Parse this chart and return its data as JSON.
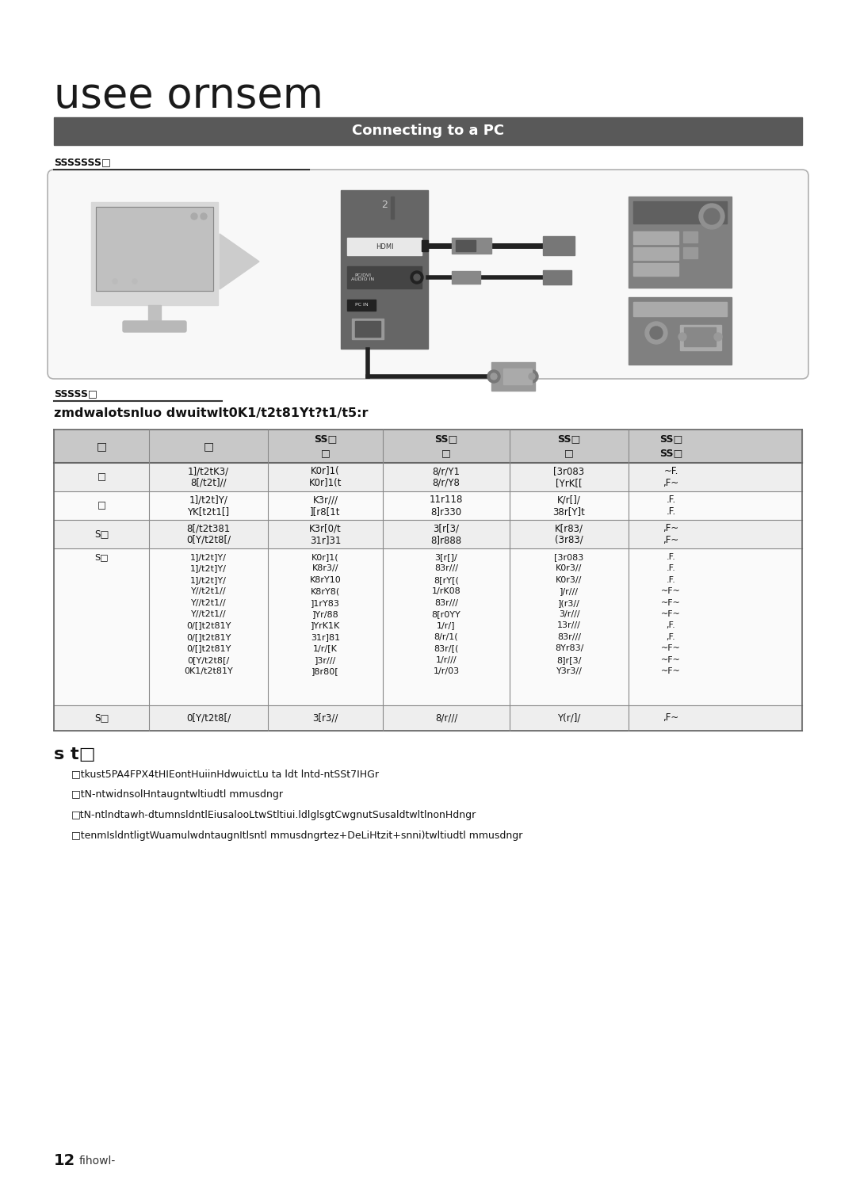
{
  "title": "usee ornsem",
  "section_header": "Connecting to a PC",
  "section_header_bg": "#595959",
  "section_header_color": "#ffffff",
  "subsection1_label": "SSSSSSS□",
  "subsection2_label": "SSSSS□",
  "table_intro": "zmdwalotsnluo dwuitwlt0K1/t2t81Yt?t1/t5:r",
  "table_header_bg": "#c8c8c8",
  "notes_title": "s t□",
  "notes": [
    "□tkust5PA4FPX4tHIEontHuiinHdwuictLu ta ldt lntd-ntSSt7IHGr",
    "□tN-ntwidnsolHntaugntwltiudtl mmusdngr",
    "□tN-ntlndtawh-dtumnsldntlEiusalooLtwStltiui.ldlglsgtCwgnutSusaldtwltlnonHdngr",
    "□tenmIsldntligtWuamulwdntaugnItlsntl mmusdngrtez+DeLiHtzit+snni)twltiudtl mmusdngr"
  ],
  "page_number": "12",
  "page_suffix": "fihowl-",
  "bg_color": "#ffffff"
}
